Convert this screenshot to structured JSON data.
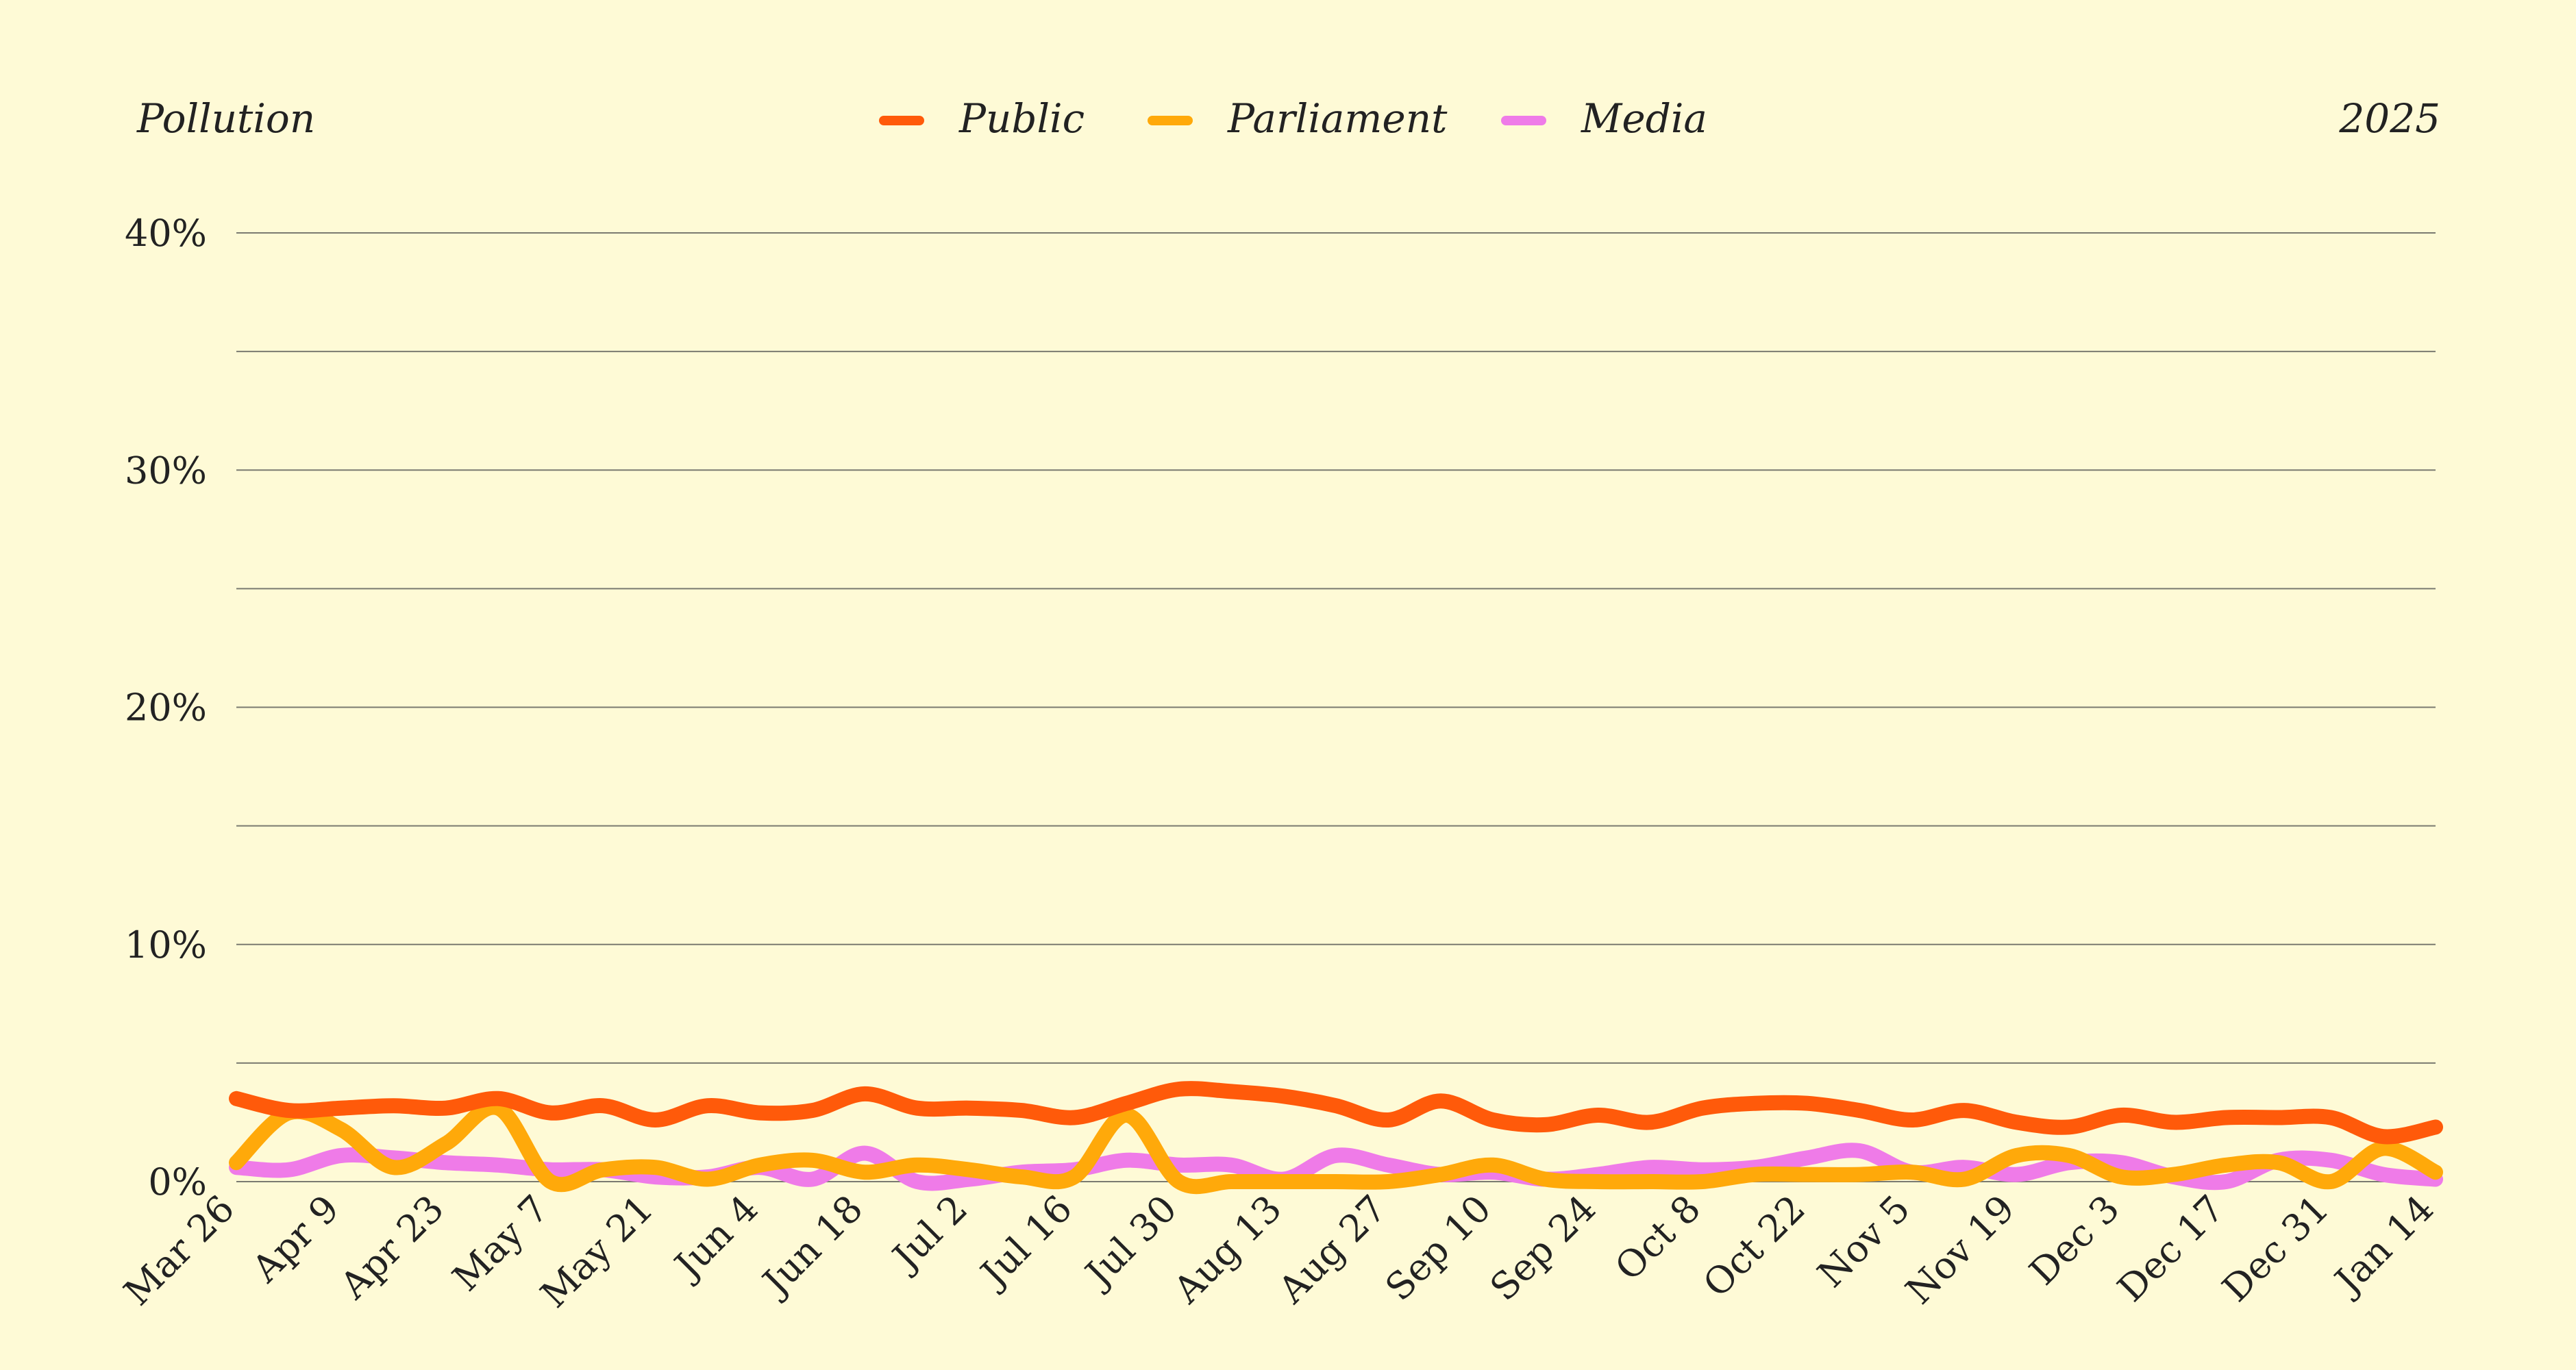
{
  "title": "Pollution",
  "year": "2025",
  "chart_data": {
    "type": "line",
    "title": "Pollution",
    "subtitle": "2025",
    "xlabel": "",
    "ylabel": "",
    "ylim": [
      0,
      40
    ],
    "yticks": [
      "0%",
      "10%",
      "20%",
      "30%",
      "40%"
    ],
    "grid": true,
    "legend_position": "top-center",
    "x": [
      "Mar 26",
      "Apr 2",
      "Apr 9",
      "Apr 16",
      "Apr 23",
      "Apr 30",
      "May 7",
      "May 14",
      "May 21",
      "May 28",
      "Jun 4",
      "Jun 11",
      "Jun 18",
      "Jun 25",
      "Jul 2",
      "Jul 9",
      "Jul 16",
      "Jul 23",
      "Jul 30",
      "Aug 6",
      "Aug 13",
      "Aug 20",
      "Aug 27",
      "Sep 3",
      "Sep 10",
      "Sep 17",
      "Sep 24",
      "Oct 1",
      "Oct 8",
      "Oct 15",
      "Oct 22",
      "Oct 29",
      "Nov 5",
      "Nov 12",
      "Nov 19",
      "Nov 26",
      "Dec 3",
      "Dec 10",
      "Dec 17",
      "Dec 24",
      "Dec 31",
      "Jan 7",
      "Jan 14"
    ],
    "xtick_labels": [
      "Mar 26",
      "Apr 9",
      "Apr 23",
      "May 7",
      "May 21",
      "Jun 4",
      "Jun 18",
      "Jul 2",
      "Jul 16",
      "Jul 30",
      "Aug 13",
      "Aug 27",
      "Sep 10",
      "Sep 24",
      "Oct 8",
      "Oct 22",
      "Nov 5",
      "Nov 19",
      "Dec 3",
      "Dec 17",
      "Dec 31",
      "Jan 14"
    ],
    "series": [
      {
        "name": "Public",
        "color": "#ff5a0a",
        "values": [
          3.5,
          3.0,
          3.1,
          3.2,
          3.1,
          3.5,
          2.9,
          3.2,
          2.6,
          3.2,
          2.9,
          3.0,
          3.7,
          3.1,
          3.1,
          3.0,
          2.7,
          3.3,
          3.9,
          3.8,
          3.6,
          3.2,
          2.6,
          3.4,
          2.6,
          2.4,
          2.8,
          2.5,
          3.1,
          3.3,
          3.3,
          3.0,
          2.6,
          3.0,
          2.5,
          2.3,
          2.8,
          2.5,
          2.7,
          2.7,
          2.7,
          1.9,
          2.3
        ]
      },
      {
        "name": "Parliament",
        "color": "#ffa90a",
        "values": [
          0.8,
          2.9,
          2.2,
          0.6,
          1.6,
          3.1,
          0.0,
          0.5,
          0.6,
          0.1,
          0.7,
          0.9,
          0.4,
          0.7,
          0.5,
          0.2,
          0.2,
          2.8,
          0.0,
          0.0,
          0.0,
          0.0,
          0.0,
          0.3,
          0.7,
          0.1,
          0.0,
          0.0,
          0.0,
          0.3,
          0.3,
          0.3,
          0.4,
          0.1,
          1.1,
          1.1,
          0.2,
          0.3,
          0.7,
          0.8,
          0.0,
          1.4,
          0.4
        ]
      },
      {
        "name": "Media",
        "color": "#ef7be8",
        "values": [
          0.6,
          0.5,
          1.1,
          1.0,
          0.8,
          0.7,
          0.5,
          0.5,
          0.2,
          0.2,
          0.6,
          0.1,
          1.2,
          0.0,
          0.1,
          0.4,
          0.5,
          0.9,
          0.7,
          0.7,
          0.1,
          1.1,
          0.7,
          0.3,
          0.4,
          0.1,
          0.3,
          0.6,
          0.5,
          0.6,
          1.0,
          1.3,
          0.4,
          0.6,
          0.3,
          0.8,
          0.8,
          0.2,
          0.0,
          0.9,
          0.9,
          0.3,
          0.1
        ]
      }
    ]
  }
}
